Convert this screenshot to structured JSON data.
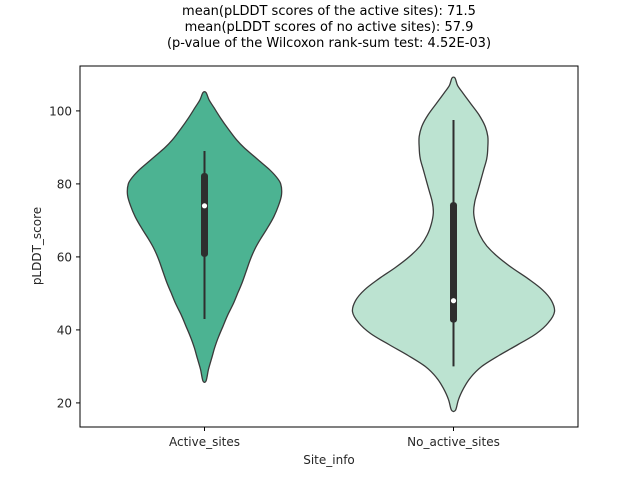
{
  "title_lines": [
    "mean(pLDDT scores of the active sites): 71.5",
    "mean(pLDDT scores of no active sites): 57.9",
    "(p-value of the Wilcoxon rank-sum test: 4.52E-03)"
  ],
  "chart_data": {
    "type": "violin",
    "title": "mean(pLDDT scores of the active sites): 71.5 / mean(pLDDT scores of no active sites): 57.9 (p-value of the Wilcoxon rank-sum test: 4.52E-03)",
    "xlabel": "Site_info",
    "ylabel": "pLDDT_score",
    "categories": [
      "Active_sites",
      "No_active_sites"
    ],
    "yticks": [
      20,
      40,
      60,
      80,
      100
    ],
    "ylim": [
      13.4,
      112.3
    ],
    "grid": false,
    "legend": "none",
    "wilcoxon_p_value": "4.52E-03",
    "colors": {
      "spine": "#000000",
      "text": "#262626",
      "edge": "#3a3a3a",
      "box": "#2e2e2e",
      "median_dot": "#ffffff"
    },
    "series": [
      {
        "name": "Active_sites",
        "mean": 71.5,
        "fill": "#4cb392",
        "max_halfwidth": 77,
        "box": {
          "whisker_low": 43,
          "q1": 60,
          "median": 74,
          "q3": 83,
          "whisker_high": 89
        },
        "density": [
          [
            26,
            0.02
          ],
          [
            29,
            0.05
          ],
          [
            32,
            0.09
          ],
          [
            35,
            0.13
          ],
          [
            38,
            0.18
          ],
          [
            41,
            0.24
          ],
          [
            44,
            0.3
          ],
          [
            47,
            0.37
          ],
          [
            50,
            0.43
          ],
          [
            53,
            0.49
          ],
          [
            56,
            0.54
          ],
          [
            59,
            0.59
          ],
          [
            62,
            0.65
          ],
          [
            65,
            0.73
          ],
          [
            68,
            0.82
          ],
          [
            71,
            0.9
          ],
          [
            74,
            0.96
          ],
          [
            77,
            1.0
          ],
          [
            80,
            0.99
          ],
          [
            82,
            0.93
          ],
          [
            84,
            0.84
          ],
          [
            86,
            0.73
          ],
          [
            88,
            0.62
          ],
          [
            90,
            0.51
          ],
          [
            92,
            0.42
          ],
          [
            95,
            0.31
          ],
          [
            98,
            0.21
          ],
          [
            101,
            0.12
          ],
          [
            103,
            0.06
          ],
          [
            105,
            0.02
          ]
        ]
      },
      {
        "name": "No_active_sites",
        "mean": 57.9,
        "fill": "#bce3d1",
        "max_halfwidth": 101,
        "box": {
          "whisker_low": 30,
          "q1": 42,
          "median": 48,
          "q3": 75,
          "whisker_high": 97.5
        },
        "density": [
          [
            18,
            0.02
          ],
          [
            21,
            0.05
          ],
          [
            24,
            0.1
          ],
          [
            27,
            0.17
          ],
          [
            30,
            0.28
          ],
          [
            33,
            0.45
          ],
          [
            36,
            0.64
          ],
          [
            39,
            0.82
          ],
          [
            42,
            0.94
          ],
          [
            45,
            1.0
          ],
          [
            48,
            0.97
          ],
          [
            51,
            0.88
          ],
          [
            54,
            0.74
          ],
          [
            57,
            0.58
          ],
          [
            60,
            0.44
          ],
          [
            63,
            0.33
          ],
          [
            66,
            0.26
          ],
          [
            69,
            0.22
          ],
          [
            72,
            0.2
          ],
          [
            75,
            0.21
          ],
          [
            78,
            0.24
          ],
          [
            81,
            0.27
          ],
          [
            84,
            0.3
          ],
          [
            87,
            0.33
          ],
          [
            90,
            0.34
          ],
          [
            93,
            0.34
          ],
          [
            96,
            0.31
          ],
          [
            99,
            0.25
          ],
          [
            102,
            0.17
          ],
          [
            105,
            0.09
          ],
          [
            107,
            0.04
          ],
          [
            109,
            0.015
          ]
        ]
      }
    ]
  }
}
